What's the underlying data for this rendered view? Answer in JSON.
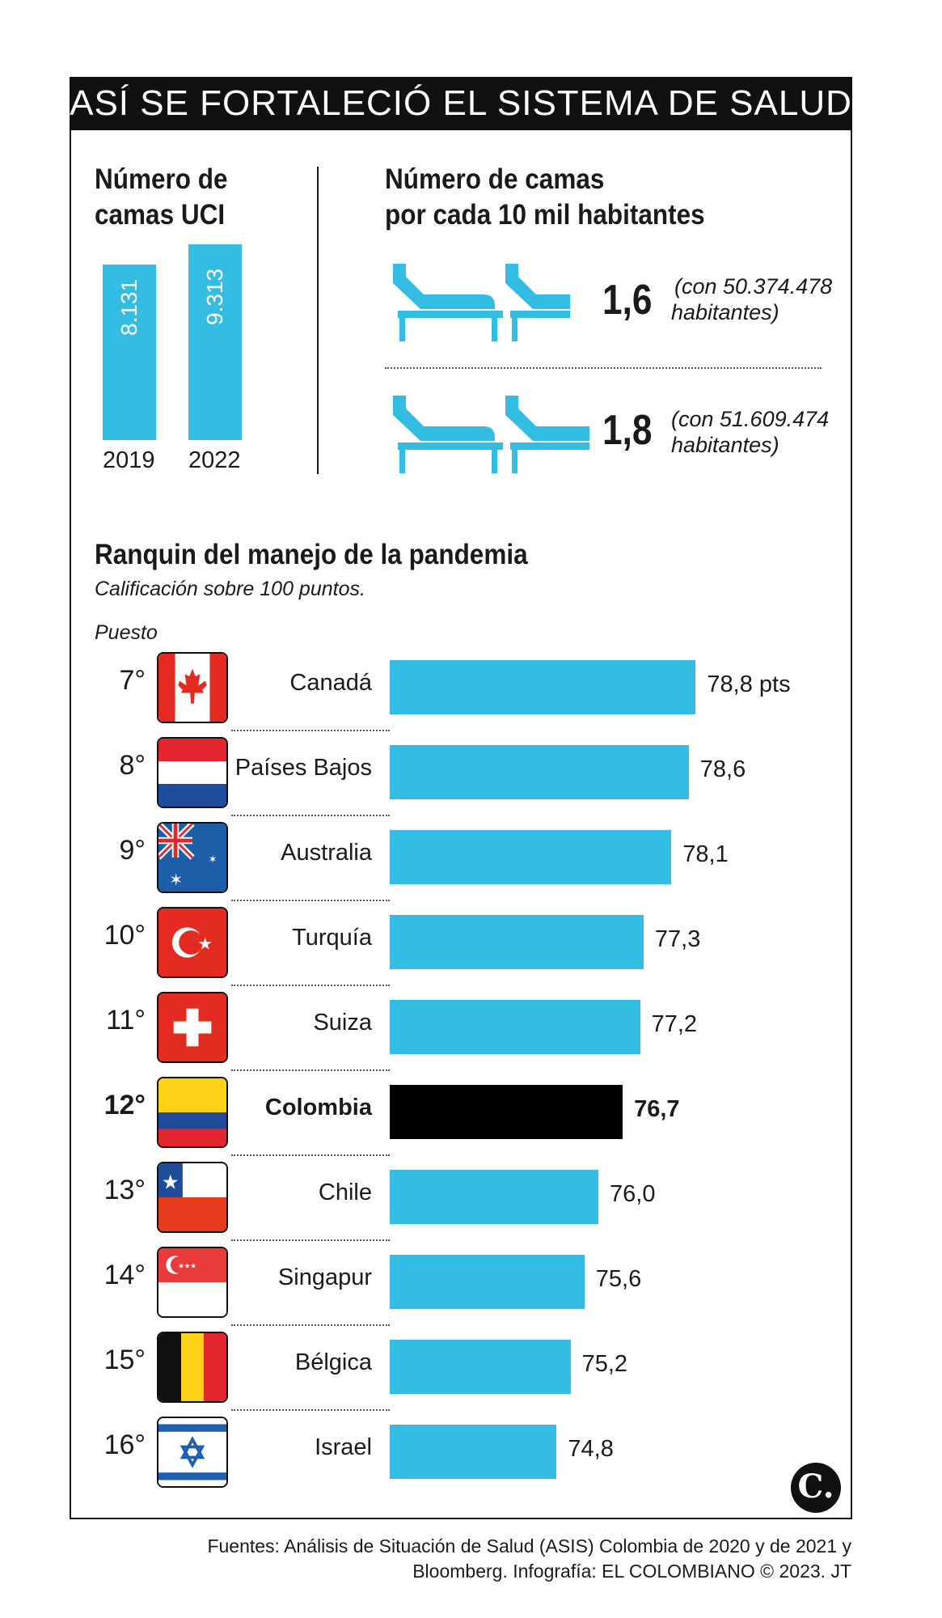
{
  "title": "ASÍ SE FORTALECIÓ EL SISTEMA DE SALUD",
  "icu": {
    "heading_line1": "Número de",
    "heading_line2": "camas UCI",
    "years": [
      "2019",
      "2022"
    ],
    "value_labels": [
      "8.131",
      "9.313"
    ]
  },
  "beds": {
    "heading_line1": "Número de camas",
    "heading_line2": "por cada 10 mil habitantes",
    "rows": [
      {
        "value": "1,6",
        "note_line1": "(con 50.374.478",
        "note_line2": "habitantes)"
      },
      {
        "value": "1,8",
        "note_line1": "(con 51.609.474",
        "note_line2": "habitantes)"
      }
    ]
  },
  "ranking": {
    "heading": "Ranquin del manejo de la pandemia",
    "subheading": "Calificación sobre 100 puntos.",
    "rank_header": "Puesto"
  },
  "colors": {
    "accent": "#33bde3",
    "highlight": "#000000",
    "header_bg": "#111111"
  },
  "chart_data": [
    {
      "type": "bar",
      "title": "Número de camas UCI",
      "categories": [
        "2019",
        "2022"
      ],
      "values": [
        8131,
        9313
      ]
    },
    {
      "type": "bar",
      "title": "Ranquin del manejo de la pandemia",
      "subtitle": "Calificación sobre 100 puntos.",
      "orientation": "horizontal",
      "categories": [
        "Canadá",
        "Países Bajos",
        "Australia",
        "Turquía",
        "Suiza",
        "Colombia",
        "Chile",
        "Singapur",
        "Bélgica",
        "Israel"
      ],
      "ranks": [
        "7°",
        "8°",
        "9°",
        "10°",
        "11°",
        "12°",
        "13°",
        "14°",
        "15°",
        "16°"
      ],
      "values": [
        78.8,
        78.6,
        78.1,
        77.3,
        77.2,
        76.7,
        76.0,
        75.6,
        75.2,
        74.8
      ],
      "value_labels": [
        "78,8 pts",
        "78,6",
        "78,1",
        "77,3",
        "77,2",
        "76,7",
        "76,0",
        "75,6",
        "75,2",
        "74,8"
      ],
      "flags": [
        "canada-flag-icon",
        "netherlands-flag-icon",
        "australia-flag-icon",
        "turkey-flag-icon",
        "switzerland-flag-icon",
        "colombia-flag-icon",
        "chile-flag-icon",
        "singapore-flag-icon",
        "belgium-flag-icon",
        "israel-flag-icon"
      ],
      "highlight": "Colombia"
    }
  ],
  "source_line1": "Fuentes: Análisis de Situación de Salud (ASIS) Colombia de 2020 y de 2021 y",
  "source_line2": "Bloomberg. Infografía: EL COLOMBIANO © 2023. JT",
  "logo_letter": "C."
}
